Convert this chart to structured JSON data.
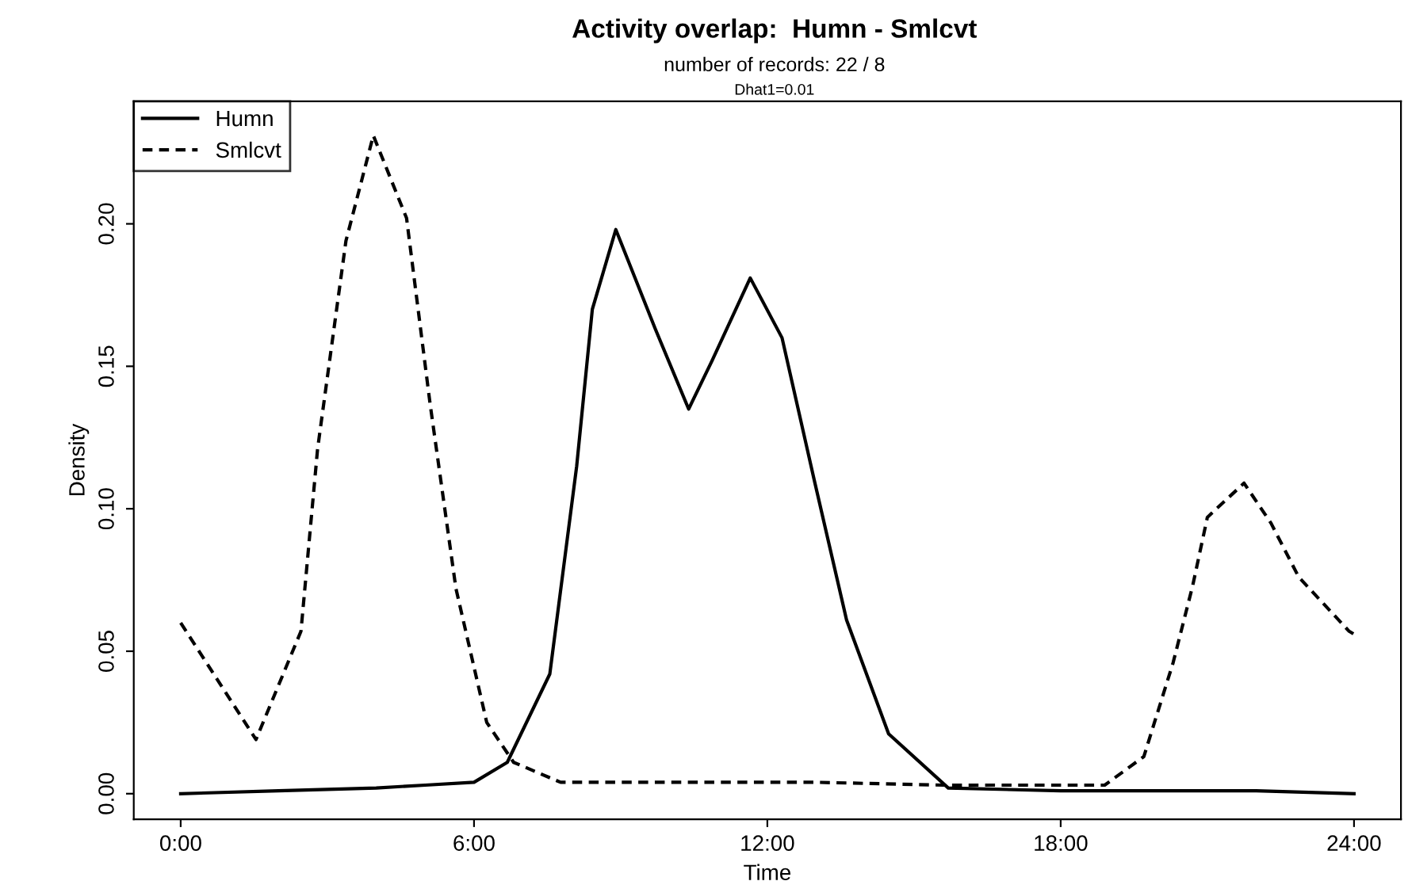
{
  "chart_data": {
    "type": "line",
    "title": "Activity overlap:  Humn - Smlcvt",
    "subtitle": "number of records: 22 / 8",
    "annotations": [
      "Dhat1=0.01"
    ],
    "xlabel": "Time",
    "ylabel": "Density",
    "series": [
      {
        "name": "Humn",
        "color": "#000000",
        "line_style": "solid",
        "x": [
          0,
          2,
          4,
          5,
          6,
          6.68,
          7.55,
          8.1,
          8.42,
          8.9,
          9.71,
          10.39,
          10.87,
          11.65,
          12.3,
          12.96,
          13.62,
          14.48,
          15.7,
          18,
          20,
          22,
          24
        ],
        "values": [
          0,
          0.001,
          0.002,
          0.003,
          0.004,
          0.011,
          0.042,
          0.115,
          0.17,
          0.198,
          0.163,
          0.135,
          0.152,
          0.181,
          0.16,
          0.11,
          0.061,
          0.021,
          0.002,
          0.001,
          0.001,
          0.001,
          0
        ]
      },
      {
        "name": "Smlcvt",
        "color": "#000000",
        "line_style": "dashed",
        "x": [
          0,
          1.54,
          2.46,
          2.8,
          3.38,
          3.94,
          4.62,
          5.1,
          5.63,
          6.26,
          6.81,
          7.77,
          10,
          13,
          15.6,
          18.9,
          19.7,
          20.3,
          20.7,
          21.0,
          21.75,
          22.3,
          22.87,
          23.9,
          24
        ],
        "values": [
          0.06,
          0.019,
          0.057,
          0.121,
          0.194,
          0.231,
          0.202,
          0.137,
          0.072,
          0.025,
          0.011,
          0.004,
          0.004,
          0.004,
          0.003,
          0.003,
          0.013,
          0.046,
          0.073,
          0.097,
          0.109,
          0.095,
          0.076,
          0.057,
          0.056
        ]
      }
    ],
    "xlim": [
      -0.96,
      24.96
    ],
    "ylim": [
      -0.009,
      0.243
    ],
    "xticks": [
      {
        "value": 0,
        "label": "0:00"
      },
      {
        "value": 6,
        "label": "6:00"
      },
      {
        "value": 12,
        "label": "12:00"
      },
      {
        "value": 18,
        "label": "18:00"
      },
      {
        "value": 24,
        "label": "24:00"
      }
    ],
    "yticks": [
      {
        "value": 0,
        "label": "0.00"
      },
      {
        "value": 0.05,
        "label": "0.05"
      },
      {
        "value": 0.1,
        "label": "0.10"
      },
      {
        "value": 0.15,
        "label": "0.15"
      },
      {
        "value": 0.2,
        "label": "0.20"
      }
    ],
    "legend": "top left",
    "grid": false
  }
}
